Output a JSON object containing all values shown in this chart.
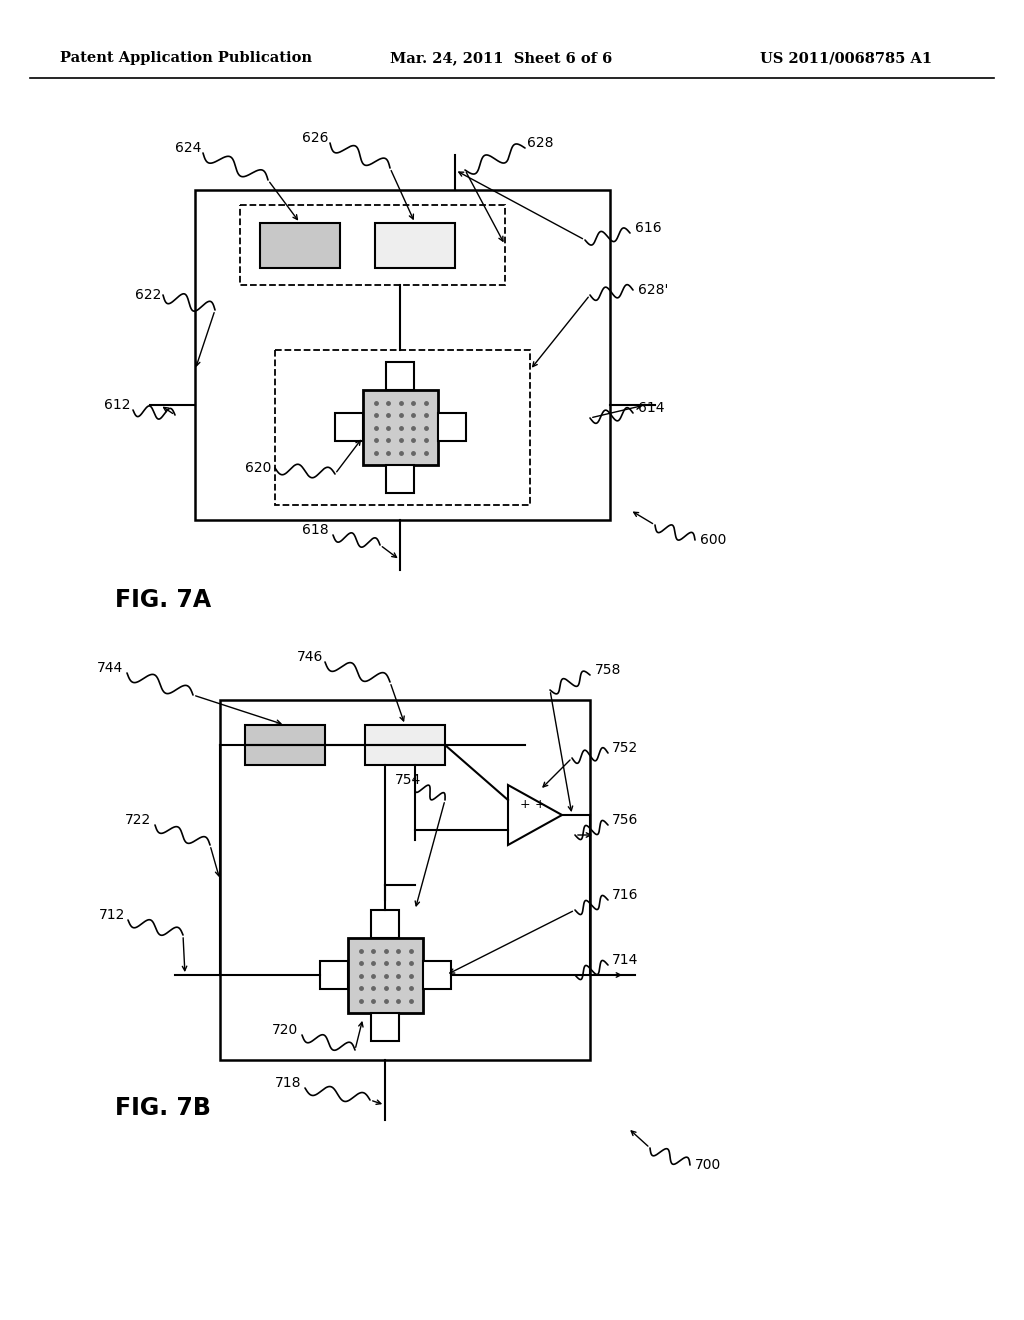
{
  "background_color": "#ffffff",
  "header_left": "Patent Application Publication",
  "header_mid": "Mar. 24, 2011  Sheet 6 of 6",
  "header_right": "US 2011/0068785 A1",
  "fig7a_label": "FIG. 7A",
  "fig7b_label": "FIG. 7B",
  "fig7a_num": "600",
  "fig7b_num": "700"
}
